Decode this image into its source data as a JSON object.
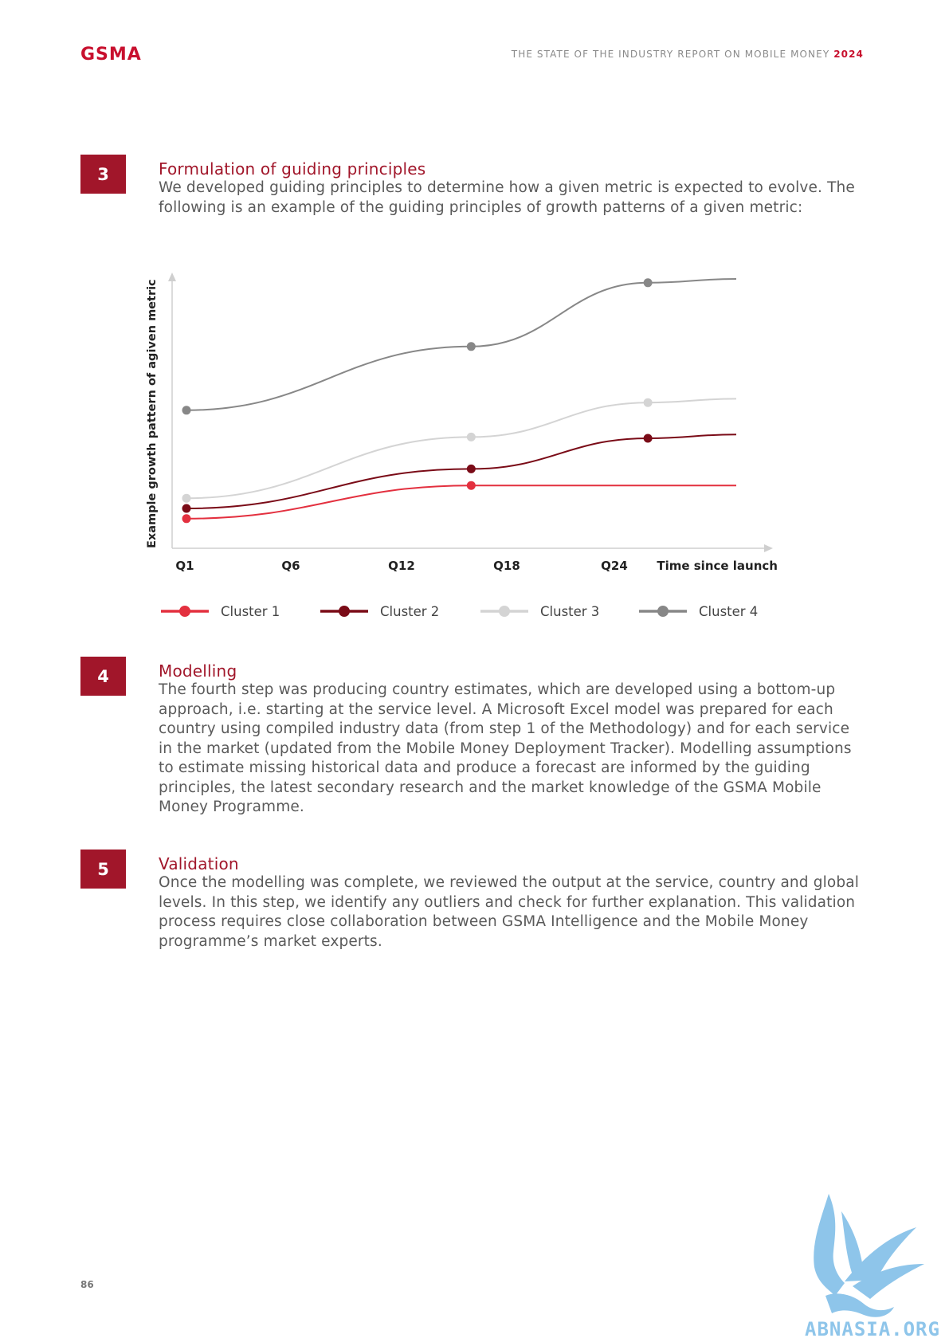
{
  "header": {
    "logo": "GSMA",
    "report_title": "THE STATE OF THE INDUSTRY REPORT ON MOBILE MONEY",
    "report_year": "2024"
  },
  "sections": [
    {
      "number": "3",
      "title": "Formulation of guiding principles",
      "body": "We developed guiding principles to determine how a given metric is expected to evolve. The following is an example of the guiding principles of growth patterns of a given metric:"
    },
    {
      "number": "4",
      "title": "Modelling",
      "body": "The fourth step was producing country estimates, which are developed using a bottom-up approach, i.e. starting at the service level. A Microsoft Excel model was prepared for each country using compiled industry data (from step 1 of the Methodology) and for each service in the market (updated from the Mobile Money Deployment Tracker). Modelling assumptions to estimate missing historical data and produce a forecast are informed by the guiding principles, the latest secondary research and the market knowledge of the GSMA Mobile Money Programme."
    },
    {
      "number": "5",
      "title": "Validation",
      "body": "Once the modelling was complete, we reviewed the output at the service, country and global levels. In this step, we identify any outliers and check for further explanation. This validation process requires close collaboration between GSMA Intelligence and the Mobile Money programme’s market experts."
    }
  ],
  "chart_data": {
    "type": "line",
    "title": "",
    "xlabel": "Time since launch",
    "ylabel": "Example growth pattern of agiven metric",
    "x_ticks": [
      "Q1",
      "Q6",
      "Q12",
      "Q18",
      "Q24"
    ],
    "xlim": [
      1,
      29
    ],
    "ylim": [
      0,
      100
    ],
    "grid": false,
    "legend_position": "bottom",
    "series": [
      {
        "name": "Cluster 1",
        "color": "#e3303f",
        "x": [
          1,
          15.5,
          29
        ],
        "values": [
          6,
          19,
          19
        ]
      },
      {
        "name": "Cluster 2",
        "color": "#7a0b17",
        "x": [
          1,
          15.5,
          24.5,
          29
        ],
        "values": [
          10,
          25.5,
          37.5,
          39
        ]
      },
      {
        "name": "Cluster 3",
        "color": "#d4d4d4",
        "x": [
          1,
          15.5,
          24.5,
          29
        ],
        "values": [
          14,
          38,
          51.5,
          53
        ]
      },
      {
        "name": "Cluster 4",
        "color": "#878787",
        "x": [
          1,
          15.5,
          24.5,
          29
        ],
        "values": [
          48.5,
          73.5,
          98.5,
          100
        ]
      }
    ]
  },
  "footer": {
    "page_number": "86",
    "watermark_text": "ABNASIA.ORG"
  }
}
